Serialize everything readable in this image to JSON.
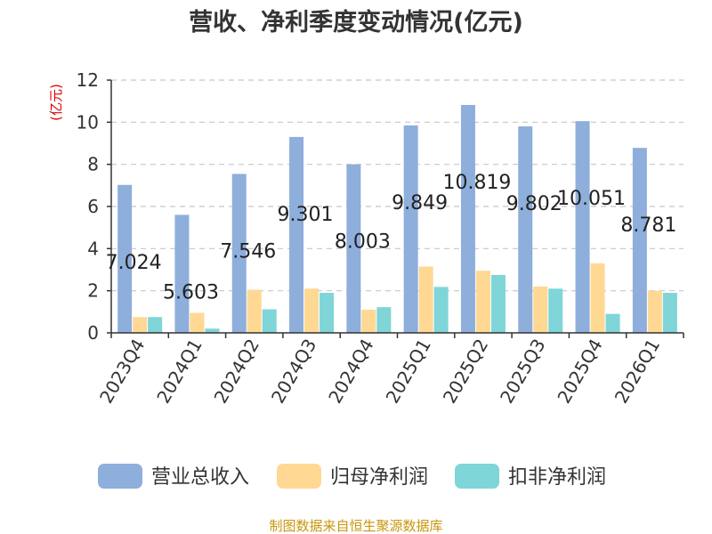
{
  "chart_data": {
    "type": "bar",
    "title": "营收、净利季度变动情况(亿元)",
    "ylabel": "(亿元)",
    "xlabel": "",
    "ylim": [
      0,
      12
    ],
    "yticks": [
      0,
      2,
      4,
      6,
      8,
      10,
      12
    ],
    "grid": true,
    "legend_position": "bottom",
    "categories": [
      "2023Q4",
      "2024Q1",
      "2024Q2",
      "2024Q3",
      "2024Q4",
      "2025Q1",
      "2025Q2",
      "2025Q3",
      "2025Q4",
      "2026Q1"
    ],
    "series": [
      {
        "name": "营业总收入",
        "color": "#8eaedb",
        "values": [
          7.024,
          5.603,
          7.546,
          9.301,
          8.003,
          9.849,
          10.819,
          9.802,
          10.051,
          8.781
        ],
        "labels": [
          "7.024",
          "5.603",
          "7.546",
          "9.301",
          "8.003",
          "9.849",
          "10.819",
          "9.802",
          "10.051",
          "8.781"
        ]
      },
      {
        "name": "归母净利润",
        "color": "#ffd894",
        "values": [
          0.75,
          0.95,
          2.05,
          2.1,
          1.1,
          3.15,
          2.95,
          2.2,
          3.3,
          2.0
        ]
      },
      {
        "name": "扣非净利润",
        "color": "#7fd5d7",
        "values": [
          0.75,
          0.2,
          1.12,
          1.9,
          1.22,
          2.18,
          2.75,
          2.1,
          0.9,
          1.9
        ]
      }
    ],
    "source": "制图数据来自恒生聚源数据库"
  }
}
